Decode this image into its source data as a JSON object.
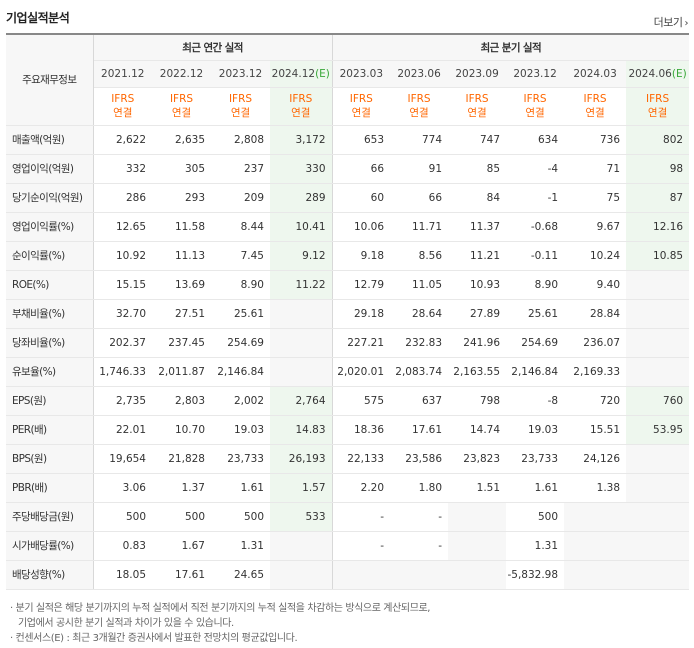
{
  "title": "기업실적분석",
  "more_label": "더보기",
  "corner_label": "주요재무정보",
  "groups": {
    "annual": "최근 연간 실적",
    "quarterly": "최근 분기 실적"
  },
  "periods": [
    "2021.12",
    "2022.12",
    "2023.12",
    "2024.12",
    "2023.03",
    "2023.06",
    "2023.09",
    "2023.12",
    "2024.03",
    "2024.06"
  ],
  "estimate_mark": "(E)",
  "ifrs": [
    "IFRS",
    "연결"
  ],
  "rows": [
    {
      "label": "매출액(억원)",
      "values": [
        "2,622",
        "2,635",
        "2,808",
        "3,172",
        "653",
        "774",
        "747",
        "634",
        "736",
        "802"
      ]
    },
    {
      "label": "영업이익(억원)",
      "values": [
        "332",
        "305",
        "237",
        "330",
        "66",
        "91",
        "85",
        "-4",
        "71",
        "98"
      ]
    },
    {
      "label": "당기순이익(억원)",
      "values": [
        "286",
        "293",
        "209",
        "289",
        "60",
        "66",
        "84",
        "-1",
        "75",
        "87"
      ]
    },
    {
      "label": "영업이익률(%)",
      "values": [
        "12.65",
        "11.58",
        "8.44",
        "10.41",
        "10.06",
        "11.71",
        "11.37",
        "-0.68",
        "9.67",
        "12.16"
      ]
    },
    {
      "label": "순이익률(%)",
      "values": [
        "10.92",
        "11.13",
        "7.45",
        "9.12",
        "9.18",
        "8.56",
        "11.21",
        "-0.11",
        "10.24",
        "10.85"
      ]
    },
    {
      "label": "ROE(%)",
      "values": [
        "15.15",
        "13.69",
        "8.90",
        "11.22",
        "12.79",
        "11.05",
        "10.93",
        "8.90",
        "9.40",
        ""
      ]
    },
    {
      "label": "부채비율(%)",
      "values": [
        "32.70",
        "27.51",
        "25.61",
        "",
        "29.18",
        "28.64",
        "27.89",
        "25.61",
        "28.84",
        ""
      ]
    },
    {
      "label": "당좌비율(%)",
      "values": [
        "202.37",
        "237.45",
        "254.69",
        "",
        "227.21",
        "232.83",
        "241.96",
        "254.69",
        "236.07",
        ""
      ]
    },
    {
      "label": "유보율(%)",
      "values": [
        "1,746.33",
        "2,011.87",
        "2,146.84",
        "",
        "2,020.01",
        "2,083.74",
        "2,163.55",
        "2,146.84",
        "2,169.33",
        ""
      ]
    },
    {
      "label": "EPS(원)",
      "values": [
        "2,735",
        "2,803",
        "2,002",
        "2,764",
        "575",
        "637",
        "798",
        "-8",
        "720",
        "760"
      ]
    },
    {
      "label": "PER(배)",
      "values": [
        "22.01",
        "10.70",
        "19.03",
        "14.83",
        "18.36",
        "17.61",
        "14.74",
        "19.03",
        "15.51",
        "53.95"
      ]
    },
    {
      "label": "BPS(원)",
      "values": [
        "19,654",
        "21,828",
        "23,733",
        "26,193",
        "22,133",
        "23,586",
        "23,823",
        "23,733",
        "24,126",
        ""
      ]
    },
    {
      "label": "PBR(배)",
      "values": [
        "3.06",
        "1.37",
        "1.61",
        "1.57",
        "2.20",
        "1.80",
        "1.51",
        "1.61",
        "1.38",
        ""
      ]
    },
    {
      "label": "주당배당금(원)",
      "values": [
        "500",
        "500",
        "500",
        "533",
        "-",
        "-",
        "",
        "500",
        "",
        ""
      ]
    },
    {
      "label": "시가배당률(%)",
      "values": [
        "0.83",
        "1.67",
        "1.31",
        "",
        "-",
        "-",
        "",
        "1.31",
        "",
        ""
      ]
    },
    {
      "label": "배당성향(%)",
      "values": [
        "18.05",
        "17.61",
        "24.65",
        "",
        "",
        "",
        "",
        "-5,832.98",
        "",
        ""
      ]
    }
  ],
  "notes": [
    "· 분기 실적은 해당 분기까지의 누적 실적에서 직전 분기까지의 누적 실적을 차감하는 방식으로 계산되므로,",
    "  기업에서 공시한 분기 실적과 차이가 있을 수 있습니다.",
    "· 컨센서스(E) : 최근 3개월간 증권사에서 발표한 전망치의 평균값입니다."
  ],
  "colors": {
    "accent": "#ff6600",
    "negative": "#ff0000",
    "estimate_bg": "#eef7ee",
    "estimate_mark": "#39a839"
  }
}
